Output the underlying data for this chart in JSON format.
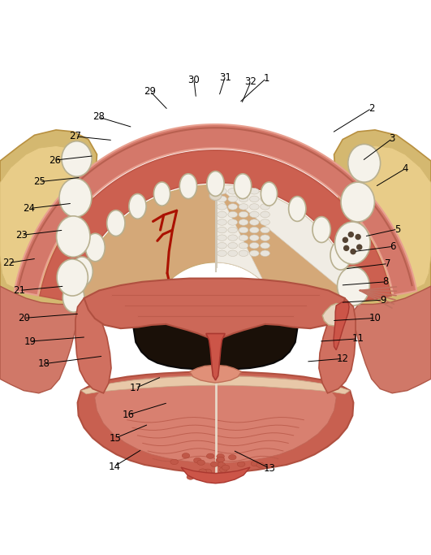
{
  "background_color": "#ffffff",
  "label_fontsize": 8.5,
  "label_color": "#000000",
  "label_positions": {
    "1": [
      0.618,
      0.038,
      0.555,
      0.095
    ],
    "2": [
      0.862,
      0.108,
      0.77,
      0.165
    ],
    "3": [
      0.91,
      0.178,
      0.84,
      0.23
    ],
    "4": [
      0.94,
      0.248,
      0.87,
      0.29
    ],
    "5": [
      0.922,
      0.388,
      0.845,
      0.405
    ],
    "6": [
      0.912,
      0.428,
      0.82,
      0.44
    ],
    "7": [
      0.9,
      0.468,
      0.8,
      0.48
    ],
    "8": [
      0.895,
      0.51,
      0.79,
      0.518
    ],
    "9": [
      0.888,
      0.552,
      0.79,
      0.558
    ],
    "10": [
      0.87,
      0.594,
      0.77,
      0.6
    ],
    "11": [
      0.83,
      0.642,
      0.74,
      0.648
    ],
    "12": [
      0.795,
      0.688,
      0.71,
      0.695
    ],
    "13": [
      0.625,
      0.942,
      0.54,
      0.9
    ],
    "14": [
      0.265,
      0.938,
      0.33,
      0.898
    ],
    "15": [
      0.268,
      0.872,
      0.345,
      0.84
    ],
    "16": [
      0.298,
      0.818,
      0.39,
      0.79
    ],
    "17": [
      0.315,
      0.756,
      0.375,
      0.73
    ],
    "18": [
      0.102,
      0.7,
      0.24,
      0.682
    ],
    "19": [
      0.07,
      0.648,
      0.2,
      0.638
    ],
    "20": [
      0.055,
      0.594,
      0.185,
      0.584
    ],
    "21": [
      0.045,
      0.53,
      0.15,
      0.52
    ],
    "22": [
      0.02,
      0.466,
      0.085,
      0.456
    ],
    "23": [
      0.05,
      0.402,
      0.148,
      0.39
    ],
    "24": [
      0.068,
      0.34,
      0.168,
      0.328
    ],
    "25": [
      0.092,
      0.278,
      0.188,
      0.268
    ],
    "26": [
      0.128,
      0.228,
      0.218,
      0.218
    ],
    "27": [
      0.175,
      0.173,
      0.262,
      0.182
    ],
    "28": [
      0.228,
      0.128,
      0.308,
      0.152
    ],
    "29": [
      0.348,
      0.068,
      0.39,
      0.112
    ],
    "30": [
      0.45,
      0.042,
      0.455,
      0.085
    ],
    "31": [
      0.522,
      0.036,
      0.508,
      0.08
    ],
    "32": [
      0.582,
      0.046,
      0.56,
      0.098
    ]
  },
  "colors": {
    "outer_lip_outer": "#e8a090",
    "outer_lip_fill": "#d4786a",
    "outer_lip_inner": "#c86050",
    "gum_fill": "#cc6050",
    "gum_inner_fill": "#c05848",
    "palate_left_fill": "#d4a878",
    "palate_right_fill": "#f0ece4",
    "palate_ridge_color": "#d0c8b8",
    "palate_center_divider": "#e8e0d0",
    "blood_vessel": "#aa1100",
    "tooth_fill": "#f5f2ea",
    "tooth_edge": "#b8b090",
    "bone_fill": "#d4b870",
    "bone_inner": "#e8cc88",
    "bone_edge": "#b89040",
    "muscle_fill": "#d07060",
    "muscle_edge": "#b05040",
    "soft_palate_fill": "#cc6858",
    "throat_color": "#1a1008",
    "tongue_fill": "#c86050",
    "tongue_surface": "#b05040",
    "tongue_tip_fill": "#cc5548",
    "tonsil_fill": "#e8d0b8",
    "tonsil_spots": "#554433",
    "skin_bg": "#f0c8a8",
    "pink_muscle": "#c07060"
  }
}
